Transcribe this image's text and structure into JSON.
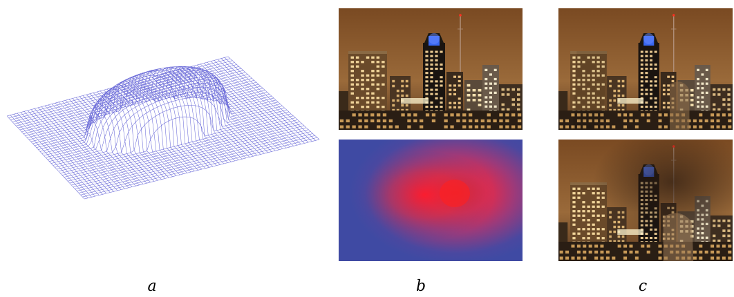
{
  "figure": {
    "panels": [
      {
        "id": "a",
        "caption": "a",
        "content": "wireframe-surface"
      },
      {
        "id": "b",
        "caption": "b",
        "content": "city-photo-and-heatmap"
      },
      {
        "id": "c",
        "caption": "c",
        "content": "warped-city-photos"
      }
    ]
  },
  "colors": {
    "mesh": "#6a6ad8",
    "sky": "#8a5a2e",
    "heat_bg": "#3f4aa3",
    "heat_hot": "#ff1a1a",
    "beacon": "#3a6cff"
  }
}
